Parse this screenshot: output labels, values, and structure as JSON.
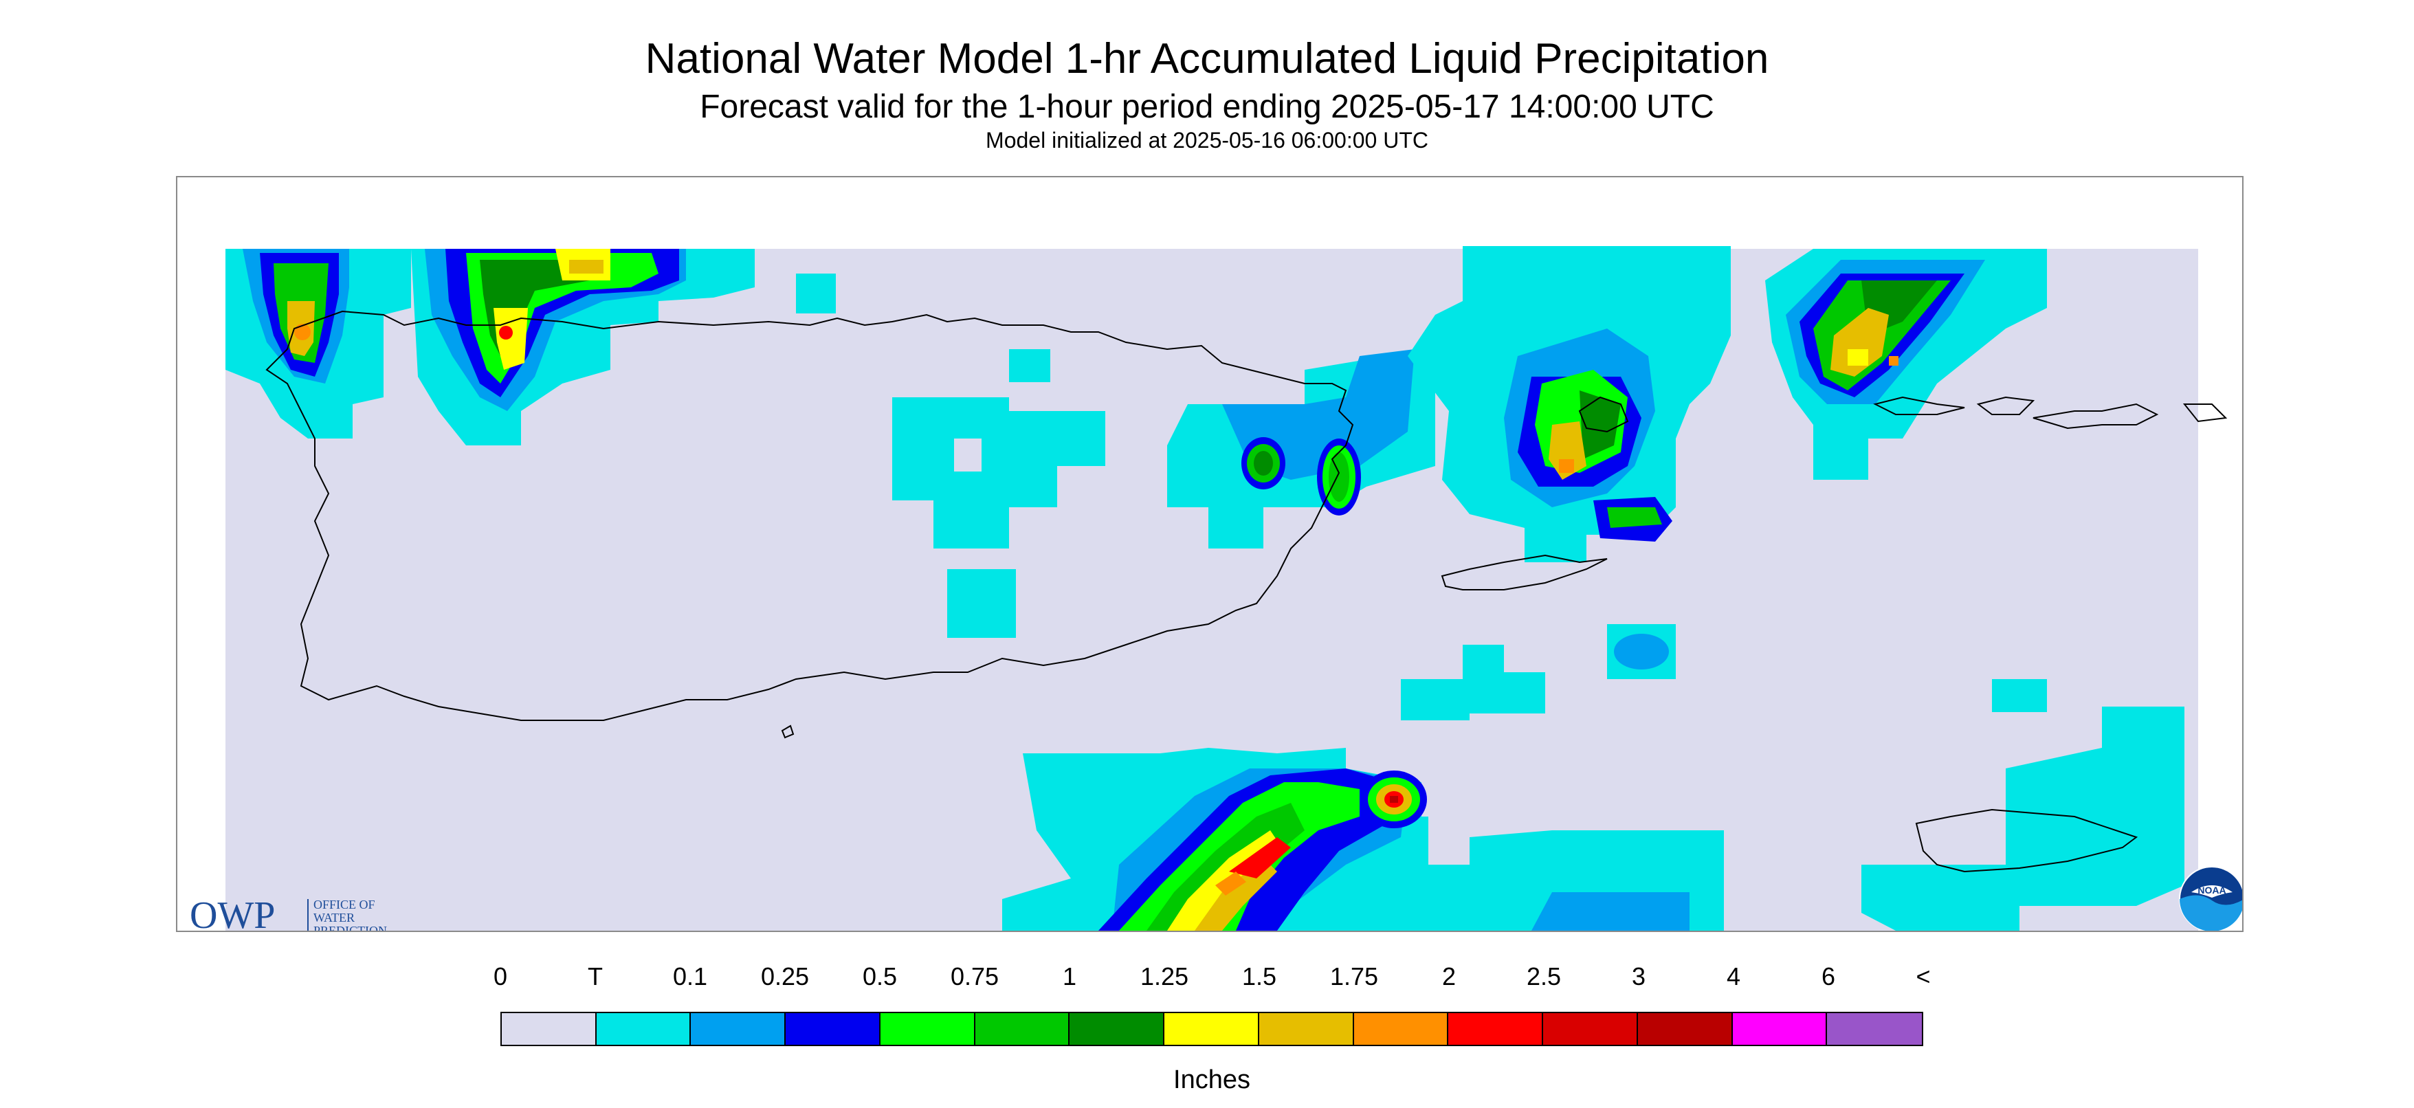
{
  "header": {
    "title": "National Water Model 1-hr Accumulated Liquid Precipitation",
    "subtitle": "Forecast valid for the 1-hour period ending 2025-05-17 14:00:00 UTC",
    "init_line": "Model initialized at 2025-05-16 06:00:00 UTC"
  },
  "map": {
    "background_color": "#dcdcee",
    "outline_color": "#000000"
  },
  "owp_logo": {
    "mark": "OWP",
    "lines": [
      "OFFICE OF",
      "WATER",
      "PREDICTION"
    ],
    "color": "#1f4e9a"
  },
  "noaa_logo": {
    "text": "NOAA"
  },
  "legend": {
    "labels": [
      "0",
      "T",
      "0.1",
      "0.25",
      "0.5",
      "0.75",
      "1",
      "1.25",
      "1.5",
      "1.75",
      "2",
      "2.5",
      "3",
      "4",
      "6",
      "<"
    ],
    "colors": [
      "#dcdcee",
      "#00e6e6",
      "#00a0f0",
      "#0000f0",
      "#00ff00",
      "#00c800",
      "#008c00",
      "#ffff00",
      "#e6be00",
      "#ff9000",
      "#ff0000",
      "#d90000",
      "#b90000",
      "#ff00ff",
      "#9955c9"
    ],
    "units": "Inches"
  }
}
